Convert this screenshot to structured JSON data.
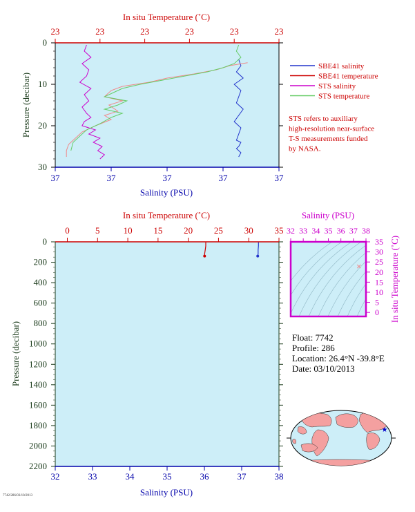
{
  "colors": {
    "panel_bg": "#cdeef8",
    "sbe_salinity": "#2233cc",
    "sbe_temperature": "#f08888",
    "sts_salinity": "#cc00cc",
    "sts_temperature": "#66cc66",
    "temp_axis": "#cc0000",
    "sal_axis": "#0000aa",
    "ts_axis": "#cc00cc",
    "pressure_axis": "#1a3a1a"
  },
  "legend": {
    "items": [
      {
        "label": "SBE41 salinity",
        "color": "#2233cc"
      },
      {
        "label": "SBE41 temperature",
        "color": "#cc0000"
      },
      {
        "label": "STS salinity",
        "color": "#cc00cc"
      },
      {
        "label": "STS temperature",
        "color": "#66cc66"
      }
    ],
    "note_lines": [
      "STS refers to auxiliary",
      "high-resolution near-surface",
      "T-S measurements funded",
      "by NASA."
    ]
  },
  "info": {
    "float": "Float:  7742",
    "profile": "Profile:  286",
    "location": "Location:  26.4°N  -39.8°E",
    "date": "Date:  03/10/2013"
  },
  "footer_id": "7742/286/03/10/2013",
  "chart_data": [
    {
      "type": "line",
      "id": "near-surface-profile",
      "top_axis_label": "In situ Temperature (˚C)",
      "top_ticks": [
        "23",
        "23",
        "23",
        "23",
        "23",
        "23"
      ],
      "bottom_axis_label": "Salinity (PSU)",
      "bottom_ticks": [
        "37",
        "37",
        "37",
        "37",
        "37"
      ],
      "ylabel": "Pressure (decibar)",
      "ylim": [
        30,
        0
      ],
      "yticks": [
        0,
        10,
        20,
        30
      ],
      "x_scale_norm": [
        0,
        1
      ],
      "series": [
        {
          "name": "SBE41 salinity",
          "x_norm": [
            0.82,
            0.83,
            0.81,
            0.84,
            0.8,
            0.83,
            0.82,
            0.81,
            0.84,
            0.82,
            0.8,
            0.83,
            0.82,
            0.81,
            0.83,
            0.82,
            0.81,
            0.82,
            0.83,
            0.82
          ],
          "pressure": [
            4,
            5.5,
            7,
            8.5,
            10,
            11.5,
            13,
            14.5,
            16,
            17.5,
            19,
            20.5,
            22,
            23.5,
            24,
            25,
            25.5,
            26,
            26.5,
            27.5
          ]
        },
        {
          "name": "SBE41 temperature",
          "x_norm": [
            0.86,
            0.78,
            0.72,
            0.62,
            0.5,
            0.42,
            0.3,
            0.25,
            0.22,
            0.3,
            0.24,
            0.28,
            0.22,
            0.25,
            0.18,
            0.12,
            0.09,
            0.06,
            0.05,
            0.05
          ],
          "pressure": [
            4.8,
            5.5,
            6.5,
            7.5,
            8.5,
            9.5,
            10.5,
            11.5,
            13,
            14,
            15,
            16.5,
            17.5,
            18.5,
            20,
            21.5,
            23,
            24.5,
            26,
            27.5
          ]
        },
        {
          "name": "STS salinity",
          "x_norm": [
            0.14,
            0.13,
            0.16,
            0.12,
            0.15,
            0.14,
            0.11,
            0.16,
            0.13,
            0.15,
            0.12,
            0.14,
            0.16,
            0.13,
            0.12,
            0.18,
            0.15,
            0.2,
            0.17,
            0.21,
            0.19,
            0.22,
            0.2
          ],
          "pressure": [
            0.5,
            2,
            3.5,
            5,
            6.5,
            8,
            9.5,
            11,
            12.5,
            14,
            15.5,
            17,
            18,
            19,
            20,
            21,
            22,
            23,
            24,
            25,
            26,
            27,
            28
          ]
        },
        {
          "name": "STS temperature",
          "x_norm": [
            0.82,
            0.81,
            0.83,
            0.8,
            0.75,
            0.68,
            0.58,
            0.48,
            0.38,
            0.3,
            0.26,
            0.22,
            0.32,
            0.28,
            0.22,
            0.3,
            0.25,
            0.2,
            0.14,
            0.11,
            0.08,
            0.07
          ],
          "pressure": [
            0.5,
            2,
            3.5,
            5,
            6,
            7,
            8,
            9,
            10,
            11,
            12,
            13,
            14,
            15,
            16,
            17,
            18,
            19.5,
            21,
            22.5,
            24,
            26
          ]
        }
      ]
    },
    {
      "type": "line",
      "id": "full-profile",
      "top_axis_label": "In situ Temperature (˚C)",
      "top_ticks": [
        0,
        5,
        10,
        15,
        20,
        25,
        30,
        35
      ],
      "xlim_temperature": [
        -2,
        35
      ],
      "bottom_axis_label": "Salinity (PSU)",
      "bottom_ticks": [
        32,
        33,
        34,
        35,
        36,
        37,
        38
      ],
      "xlim_salinity": [
        32,
        38
      ],
      "ylabel": "Pressure (decibar)",
      "ylim": [
        2200,
        0
      ],
      "yticks": [
        0,
        200,
        400,
        600,
        800,
        1000,
        1200,
        1400,
        1600,
        1800,
        2000,
        2200
      ],
      "series": [
        {
          "name": "SBE41 temperature",
          "temperature": [
            22.9,
            22.9,
            22.8,
            22.7,
            22.7
          ],
          "pressure": [
            4,
            40,
            80,
            120,
            140
          ]
        },
        {
          "name": "SBE41 salinity",
          "salinity": [
            37.45,
            37.45,
            37.44,
            37.44,
            37.43
          ],
          "pressure": [
            4,
            40,
            80,
            120,
            140
          ]
        }
      ]
    },
    {
      "type": "scatter",
      "id": "ts-diagram",
      "top_axis_label": "Salinity (PSU)",
      "top_ticks": [
        32,
        33,
        34,
        35,
        36,
        37,
        38
      ],
      "xlim": [
        32,
        38
      ],
      "right_axis_label": "In situ Temperature (˚C)",
      "right_ticks": [
        0,
        5,
        10,
        15,
        20,
        25,
        30,
        35
      ],
      "ylim": [
        -2,
        35
      ],
      "points": [
        {
          "salinity": 37.44,
          "temperature": 22.8
        }
      ]
    }
  ]
}
